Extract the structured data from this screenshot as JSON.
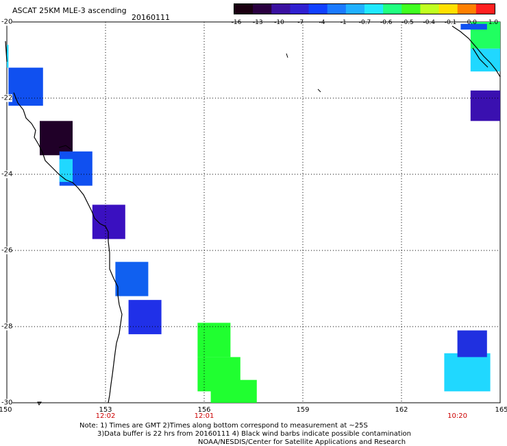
{
  "header": {
    "title": "ASCAT 25KM MLE-3 ascending",
    "date": "20160111"
  },
  "colorbar": {
    "labels": [
      "-16",
      "-13",
      "-10",
      "-7",
      "-4",
      "-1",
      "-0.7",
      "-0.6",
      "-0.5",
      "-0.4",
      "-0.1",
      "0.0",
      "1.0"
    ],
    "colors": [
      "#1a0010",
      "#2a0040",
      "#3a10a0",
      "#3020d0",
      "#1040ff",
      "#1a7aff",
      "#20b0ff",
      "#20e8ff",
      "#20ff80",
      "#40ff20",
      "#c0ff20",
      "#ffe000",
      "#ff8000",
      "#ff2020"
    ]
  },
  "axes": {
    "lat_labels": [
      "-20",
      "-22",
      "-24",
      "-26",
      "-28",
      "-30"
    ],
    "lon_labels": [
      "150",
      "153",
      "156",
      "159",
      "162",
      "165"
    ],
    "lat_range": [
      -30,
      -20
    ],
    "lon_range": [
      150,
      165
    ],
    "grid": true
  },
  "times": [
    {
      "label": "12:02",
      "lon": 153
    },
    {
      "label": "12:01",
      "lon": 156
    },
    {
      "label": "10:20",
      "lon": 163.7
    }
  ],
  "notes": {
    "line1": "Note: 1) Times are GMT 2)Times along bottom correspond to measurement at ~25S",
    "line2": "3)Data buffer is 22 hrs from 20160111 4) Black wind barbs indicate possible contamination",
    "line3": "NOAA/NESDIS/Center for Satellite Applications and Research"
  },
  "swaths": [
    {
      "lon": [
        150.0,
        150.05
      ],
      "lat": [
        -21.2,
        -20.6
      ],
      "color": "#20d8ff"
    },
    {
      "lon": [
        150.05,
        151.1
      ],
      "lat": [
        -22.2,
        -21.2
      ],
      "color": "#1050f0"
    },
    {
      "lon": [
        151.0,
        152.0
      ],
      "lat": [
        -23.5,
        -22.6
      ],
      "color": "#200028"
    },
    {
      "lon": [
        151.6,
        152.6
      ],
      "lat": [
        -24.3,
        -23.4
      ],
      "color": "#1050f0"
    },
    {
      "lon": [
        151.6,
        152.0
      ],
      "lat": [
        -24.2,
        -23.6
      ],
      "color": "#20d8ff"
    },
    {
      "lon": [
        152.6,
        153.6
      ],
      "lat": [
        -25.7,
        -24.8
      ],
      "color": "#3a10c0"
    },
    {
      "lon": [
        153.3,
        154.3
      ],
      "lat": [
        -27.2,
        -26.3
      ],
      "color": "#1060f0"
    },
    {
      "lon": [
        153.7,
        154.7
      ],
      "lat": [
        -28.2,
        -27.3
      ],
      "color": "#2030e8"
    },
    {
      "lon": [
        155.8,
        156.8
      ],
      "lat": [
        -28.8,
        -27.9
      ],
      "color": "#20ff30"
    },
    {
      "lon": [
        155.8,
        157.1
      ],
      "lat": [
        -29.7,
        -28.8
      ],
      "color": "#20ff30"
    },
    {
      "lon": [
        156.2,
        157.6
      ],
      "lat": [
        -30.0,
        -29.4
      ],
      "color": "#20ff30"
    },
    {
      "lon": [
        164.1,
        165.0
      ],
      "lat": [
        -20.7,
        -20.0
      ],
      "color": "#20ff60"
    },
    {
      "lon": [
        163.8,
        164.6
      ],
      "lat": [
        -20.2,
        -20.05
      ],
      "color": "#1050f0"
    },
    {
      "lon": [
        164.1,
        165.0
      ],
      "lat": [
        -21.3,
        -20.7
      ],
      "color": "#20d8ff"
    },
    {
      "lon": [
        164.1,
        165.0
      ],
      "lat": [
        -22.6,
        -21.8
      ],
      "color": "#3a10b0"
    },
    {
      "lon": [
        163.3,
        164.7
      ],
      "lat": [
        -29.7,
        -28.7
      ],
      "color": "#20d8ff"
    },
    {
      "lon": [
        163.7,
        164.6
      ],
      "lat": [
        -28.8,
        -28.1
      ],
      "color": "#2030e0"
    }
  ]
}
